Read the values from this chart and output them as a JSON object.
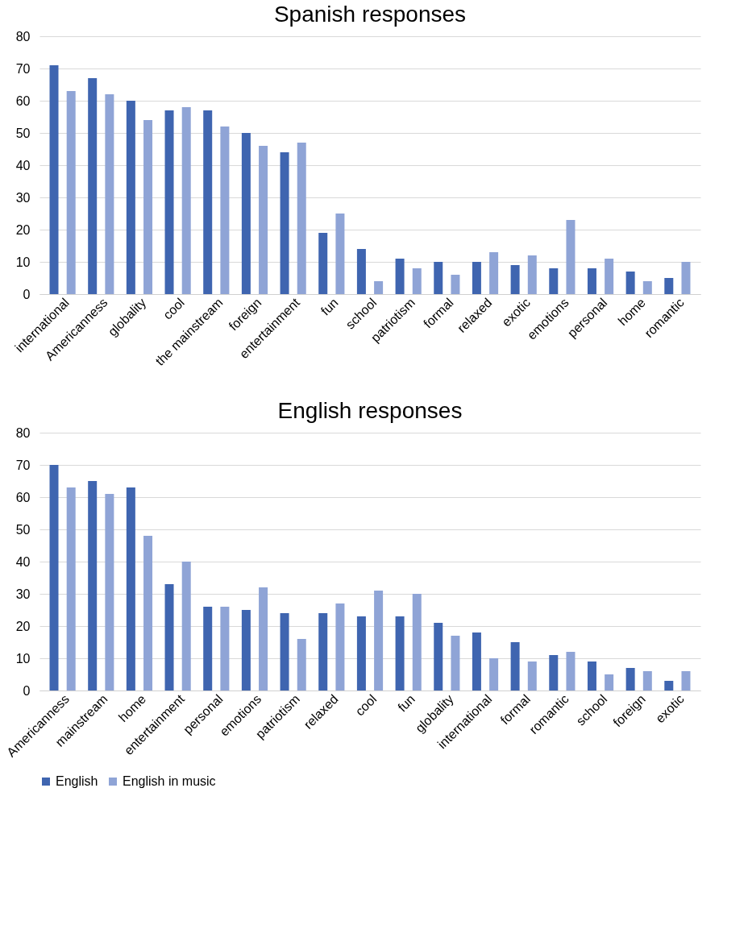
{
  "chart_data": [
    {
      "type": "bar",
      "title": "Spanish responses",
      "categories": [
        "international",
        "Americanness",
        "globality",
        "cool",
        "the mainstream",
        "foreign",
        "entertainment",
        "fun",
        "school",
        "patriotism",
        "formal",
        "relaxed",
        "exotic",
        "emotions",
        "personal",
        "home",
        "romantic"
      ],
      "series": [
        {
          "color": "#3f65b0",
          "values": [
            71,
            67,
            60,
            57,
            57,
            50,
            44,
            19,
            14,
            11,
            10,
            10,
            9,
            8,
            8,
            7,
            5
          ]
        },
        {
          "color": "#8fa4d6",
          "values": [
            63,
            62,
            54,
            58,
            52,
            46,
            47,
            25,
            4,
            8,
            6,
            13,
            12,
            23,
            11,
            4,
            10
          ]
        }
      ],
      "ylim": [
        0,
        80
      ],
      "yticks": [
        0,
        10,
        20,
        30,
        40,
        50,
        60,
        70,
        80
      ],
      "grid": "y",
      "legend": false
    },
    {
      "type": "bar",
      "title": "English responses",
      "categories": [
        "Americanness",
        "mainstream",
        "home",
        "entertainment",
        "personal",
        "emotions",
        "patriotism",
        "relaxed",
        "cool",
        "fun",
        "globality",
        "international",
        "formal",
        "romantic",
        "school",
        "foreign",
        "exotic"
      ],
      "series": [
        {
          "name": "English",
          "color": "#3f65b0",
          "values": [
            70,
            65,
            63,
            33,
            26,
            25,
            24,
            24,
            23,
            23,
            21,
            18,
            15,
            11,
            9,
            7,
            3
          ]
        },
        {
          "name": "English in music",
          "color": "#8fa4d6",
          "values": [
            63,
            61,
            48,
            40,
            26,
            32,
            16,
            27,
            31,
            30,
            17,
            10,
            9,
            12,
            5,
            6,
            6
          ]
        }
      ],
      "ylim": [
        0,
        80
      ],
      "yticks": [
        0,
        10,
        20,
        30,
        40,
        50,
        60,
        70,
        80
      ],
      "grid": "y",
      "legend": "bottom"
    }
  ]
}
